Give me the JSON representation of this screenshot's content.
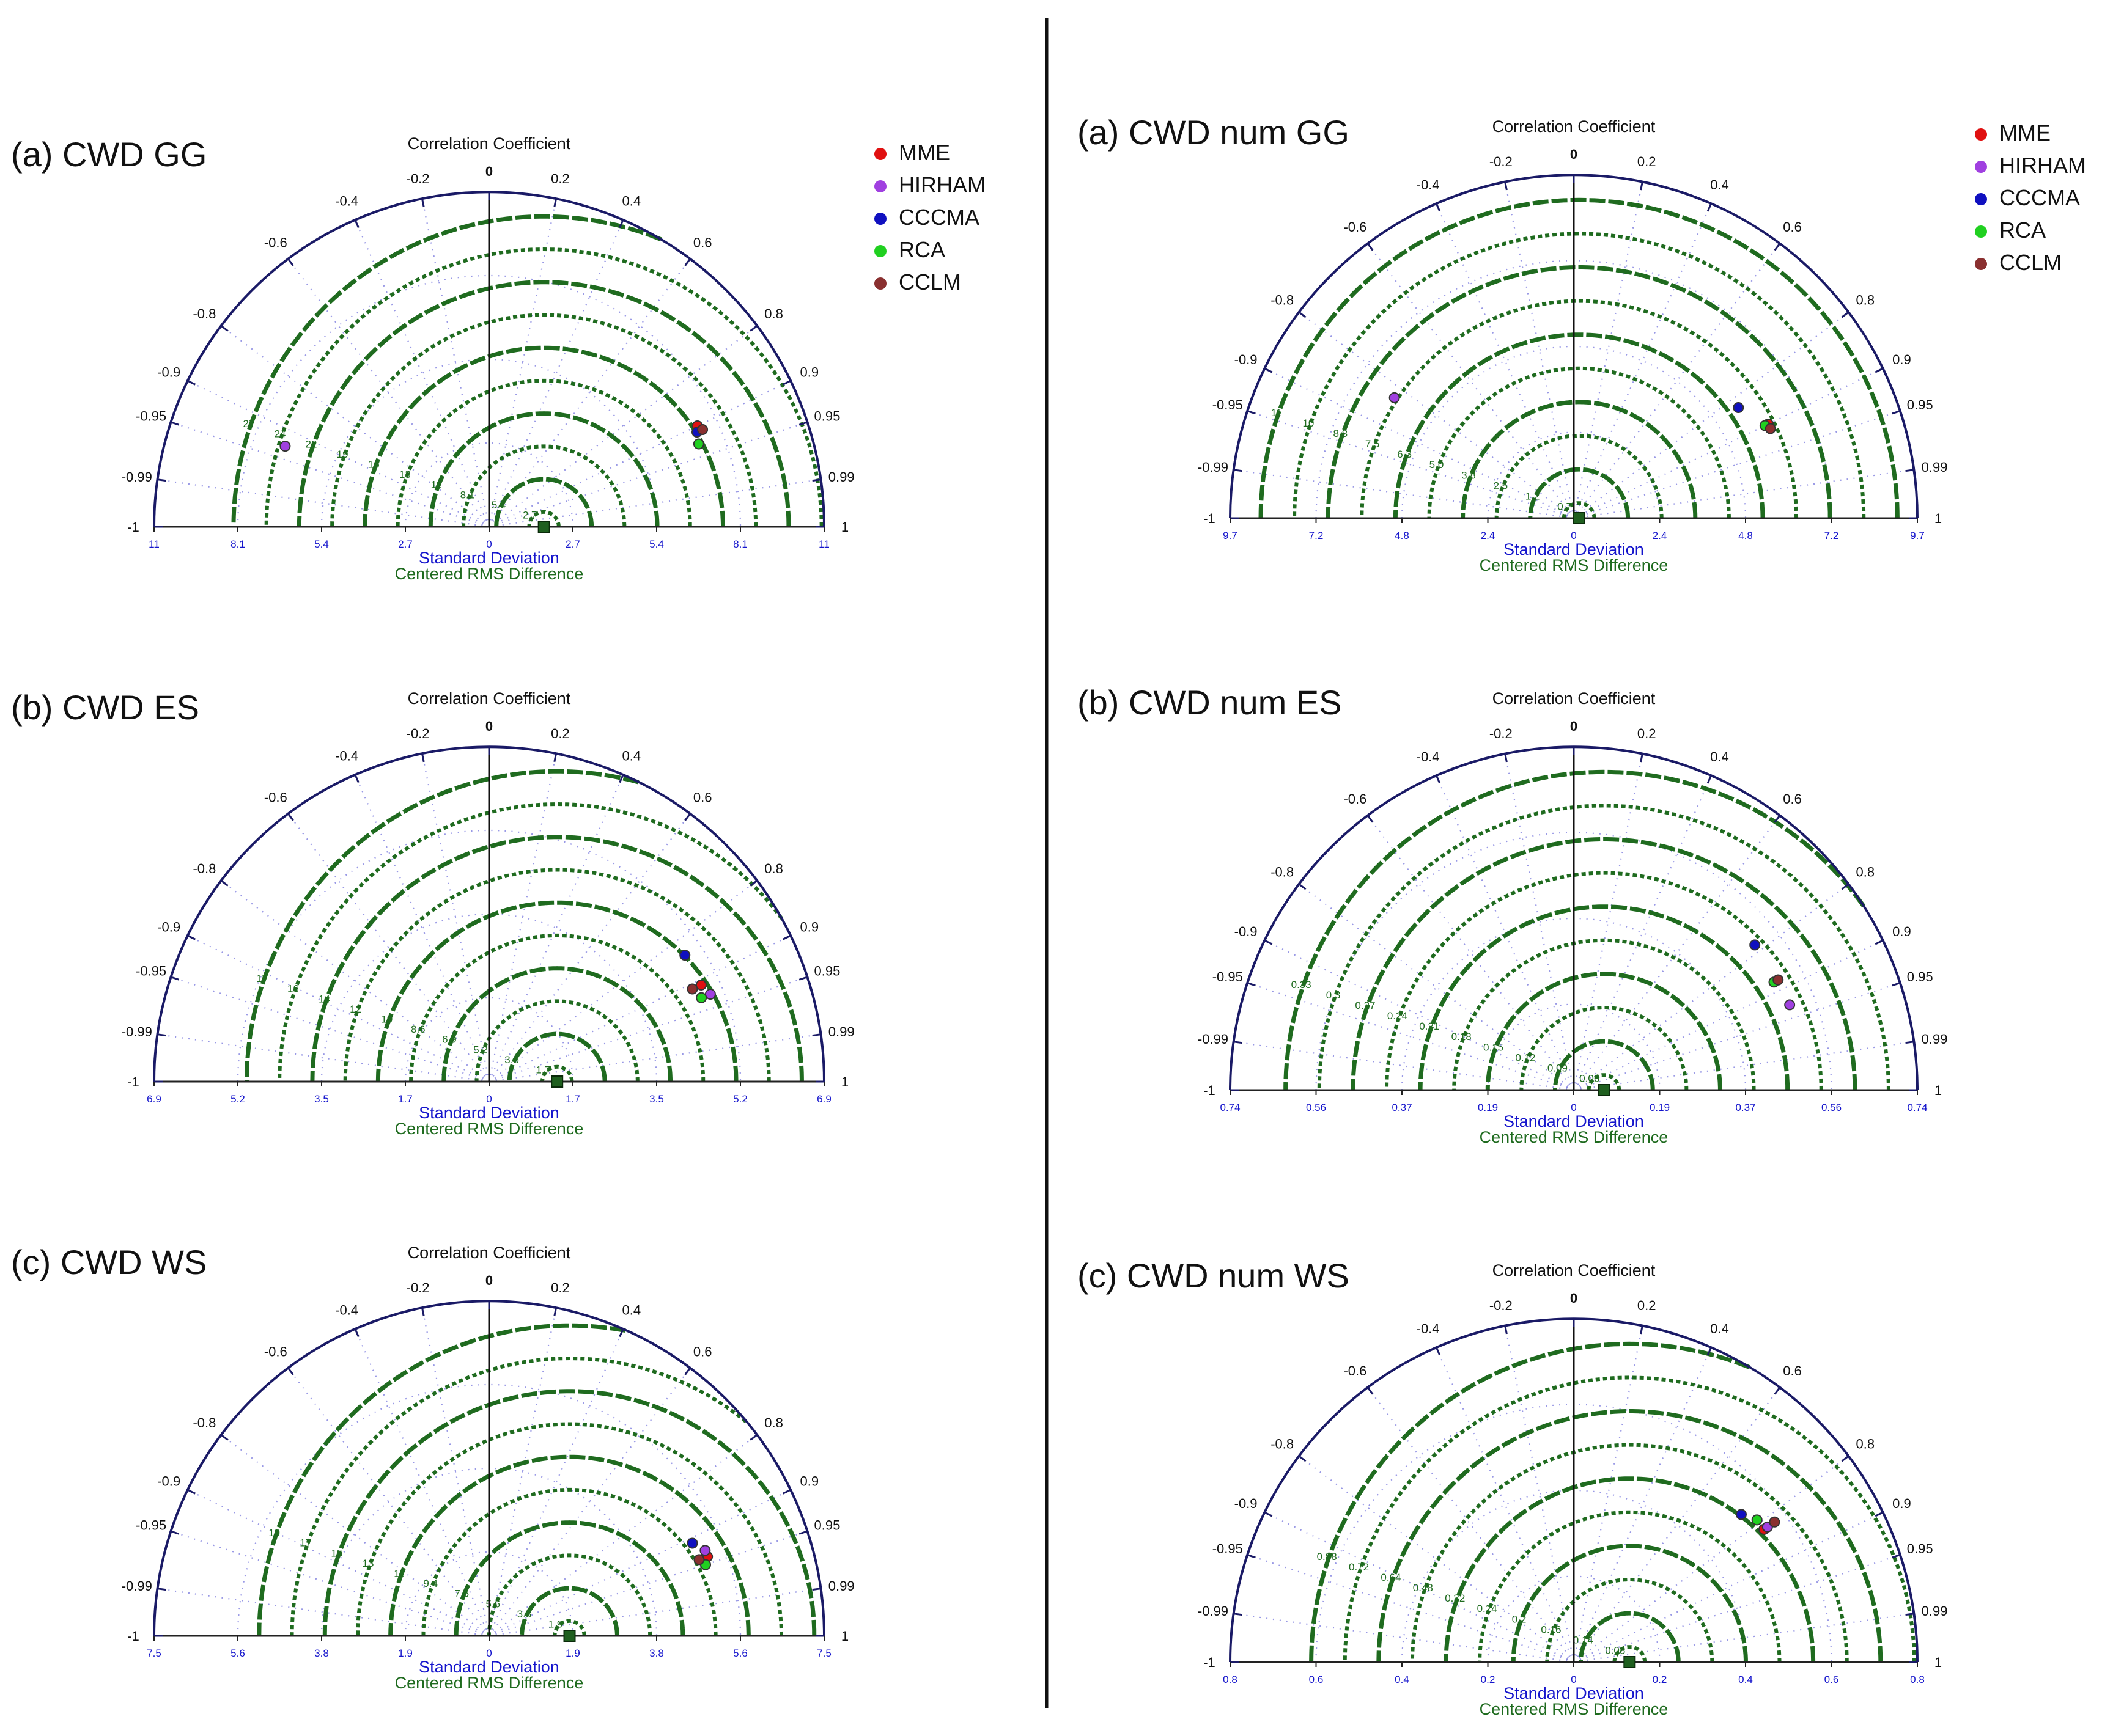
{
  "figure": {
    "colors": {
      "axis": "#1a1a66",
      "rms": "#1f6b1f",
      "stdLabel": "#1515cc",
      "correlationGrid": "#7777dd",
      "text": "#111111",
      "reference": "#1f5f1f"
    },
    "correlation_ticks": [
      {
        "value": -1,
        "label": "-1"
      },
      {
        "value": -0.99,
        "label": "-0.99"
      },
      {
        "value": -0.95,
        "label": "-0.95"
      },
      {
        "value": -0.9,
        "label": "-0.9"
      },
      {
        "value": -0.8,
        "label": "-0.8"
      },
      {
        "value": -0.6,
        "label": "-0.6"
      },
      {
        "value": -0.4,
        "label": "-0.4"
      },
      {
        "value": -0.2,
        "label": "-0.2"
      },
      {
        "value": 0,
        "label": "0"
      },
      {
        "value": 0.2,
        "label": "0.2"
      },
      {
        "value": 0.4,
        "label": "0.4"
      },
      {
        "value": 0.6,
        "label": "0.6"
      },
      {
        "value": 0.8,
        "label": "0.8"
      },
      {
        "value": 0.9,
        "label": "0.9"
      },
      {
        "value": 0.95,
        "label": "0.95"
      },
      {
        "value": 0.99,
        "label": "0.99"
      },
      {
        "value": 1,
        "label": "1"
      }
    ],
    "models": [
      {
        "name": "MME",
        "color": "#e01010"
      },
      {
        "name": "HIRHAM",
        "color": "#a040e0"
      },
      {
        "name": "CCCMA",
        "color": "#1010c0"
      },
      {
        "name": "RCA",
        "color": "#20d020"
      },
      {
        "name": "CCLM",
        "color": "#8a3030"
      }
    ],
    "axis_title_top": "Correlation Coefficient",
    "axis_title_std": "Standard Deviation",
    "axis_title_rms": "Centered RMS Difference"
  },
  "chart_data": [
    {
      "type": "scatter",
      "subtype": "taylor-diagram",
      "title": "(a) CWD GG",
      "legend": "right",
      "std_max": 11,
      "std_ticks": [
        "11",
        "8.1",
        "5.4",
        "2.7",
        "0",
        "2.7",
        "5.4",
        "8.1",
        "11"
      ],
      "rms_labels": [
        "2.7",
        "5.4",
        "8.1",
        "11",
        "13",
        "16",
        "19",
        "22",
        "24",
        "27"
      ],
      "reference_std": 1.8,
      "points": [
        {
          "model": "MME",
          "correlation": 0.9,
          "std": 7.6
        },
        {
          "model": "HIRHAM",
          "correlation": -0.93,
          "std": 7.2
        },
        {
          "model": "CCCMA",
          "correlation": 0.91,
          "std": 7.5
        },
        {
          "model": "RCA",
          "correlation": 0.93,
          "std": 7.4
        },
        {
          "model": "CCLM",
          "correlation": 0.91,
          "std": 7.7
        }
      ]
    },
    {
      "type": "scatter",
      "subtype": "taylor-diagram",
      "title": "(b) CWD ES",
      "std_max": 6.9,
      "std_ticks": [
        "6.9",
        "5.2",
        "3.5",
        "1.7",
        "0",
        "1.7",
        "3.5",
        "5.2",
        "6.9"
      ],
      "rms_labels": [
        "1.7",
        "3.5",
        "5.2",
        "6.9",
        "8.6",
        "10",
        "12",
        "14",
        "16",
        "17"
      ],
      "reference_std": 1.4,
      "points": [
        {
          "model": "MME",
          "correlation": 0.91,
          "std": 4.8
        },
        {
          "model": "HIRHAM",
          "correlation": 0.93,
          "std": 4.9
        },
        {
          "model": "CCCMA",
          "correlation": 0.84,
          "std": 4.8
        },
        {
          "model": "RCA",
          "correlation": 0.93,
          "std": 4.7
        },
        {
          "model": "CCLM",
          "correlation": 0.91,
          "std": 4.6
        }
      ]
    },
    {
      "type": "scatter",
      "subtype": "taylor-diagram",
      "title": "(c) CWD WS",
      "std_max": 7.5,
      "std_ticks": [
        "7.5",
        "5.6",
        "3.8",
        "1.9",
        "0",
        "1.9",
        "3.8",
        "5.6",
        "7.5"
      ],
      "rms_labels": [
        "1.9",
        "3.8",
        "5.6",
        "7.5",
        "9.4",
        "11",
        "13",
        "15",
        "17",
        "19"
      ],
      "reference_std": 1.8,
      "points": [
        {
          "model": "MME",
          "correlation": 0.94,
          "std": 5.2
        },
        {
          "model": "HIRHAM",
          "correlation": 0.93,
          "std": 5.2
        },
        {
          "model": "CCCMA",
          "correlation": 0.91,
          "std": 5.0
        },
        {
          "model": "RCA",
          "correlation": 0.95,
          "std": 5.1
        },
        {
          "model": "CCLM",
          "correlation": 0.94,
          "std": 5.0
        }
      ]
    },
    {
      "type": "scatter",
      "subtype": "taylor-diagram",
      "title": "(a) CWD num GG",
      "legend": "right",
      "std_max": 9.7,
      "std_ticks": [
        "9.7",
        "7.2",
        "4.8",
        "2.4",
        "0",
        "2.4",
        "4.8",
        "7.2",
        "9.7"
      ],
      "rms_labels": [
        "0.7",
        "1.2",
        "2.5",
        "3.8",
        "5.0",
        "6.3",
        "7.5",
        "8.8",
        "10",
        "11"
      ],
      "reference_std": 0.15,
      "points": [
        {
          "model": "MME",
          "correlation": 0.9,
          "std": 6.1
        },
        {
          "model": "HIRHAM",
          "correlation": -0.83,
          "std": 6.1
        },
        {
          "model": "CCCMA",
          "correlation": 0.83,
          "std": 5.6
        },
        {
          "model": "RCA",
          "correlation": 0.9,
          "std": 6.0
        },
        {
          "model": "CCLM",
          "correlation": 0.91,
          "std": 6.1
        }
      ]
    },
    {
      "type": "scatter",
      "subtype": "taylor-diagram",
      "title": "(b) CWD num ES",
      "std_max": 0.74,
      "std_ticks": [
        "0.74",
        "0.56",
        "0.37",
        "0.19",
        "0",
        "0.19",
        "0.37",
        "0.56",
        "0.74"
      ],
      "rms_labels": [
        "0.06",
        "0.09",
        "0.12",
        "0.15",
        "0.18",
        "0.21",
        "0.24",
        "0.27",
        "0.3",
        "0.33"
      ],
      "reference_std": 0.065,
      "points": [
        {
          "model": "MME",
          "correlation": 0.88,
          "std": 0.5
        },
        {
          "model": "HIRHAM",
          "correlation": 0.93,
          "std": 0.5
        },
        {
          "model": "CCCMA",
          "correlation": 0.78,
          "std": 0.5
        },
        {
          "model": "RCA",
          "correlation": 0.88,
          "std": 0.49
        },
        {
          "model": "CCLM",
          "correlation": 0.88,
          "std": 0.5
        }
      ]
    },
    {
      "type": "scatter",
      "subtype": "taylor-diagram",
      "title": "(c) CWD num WS",
      "std_max": 0.8,
      "std_ticks": [
        "0.8",
        "0.6",
        "0.4",
        "0.2",
        "0",
        "0.2",
        "0.4",
        "0.6",
        "0.8"
      ],
      "rms_labels": [
        "0.08",
        "0.14",
        "0.16",
        "0.2",
        "0.24",
        "0.32",
        "0.48",
        "0.64",
        "0.72",
        "0.88"
      ],
      "reference_std": 0.13,
      "points": [
        {
          "model": "MME",
          "correlation": 0.82,
          "std": 0.54
        },
        {
          "model": "HIRHAM",
          "correlation": 0.82,
          "std": 0.55
        },
        {
          "model": "CCCMA",
          "correlation": 0.75,
          "std": 0.52
        },
        {
          "model": "RCA",
          "correlation": 0.79,
          "std": 0.54
        },
        {
          "model": "CCLM",
          "correlation": 0.82,
          "std": 0.57
        }
      ]
    }
  ]
}
